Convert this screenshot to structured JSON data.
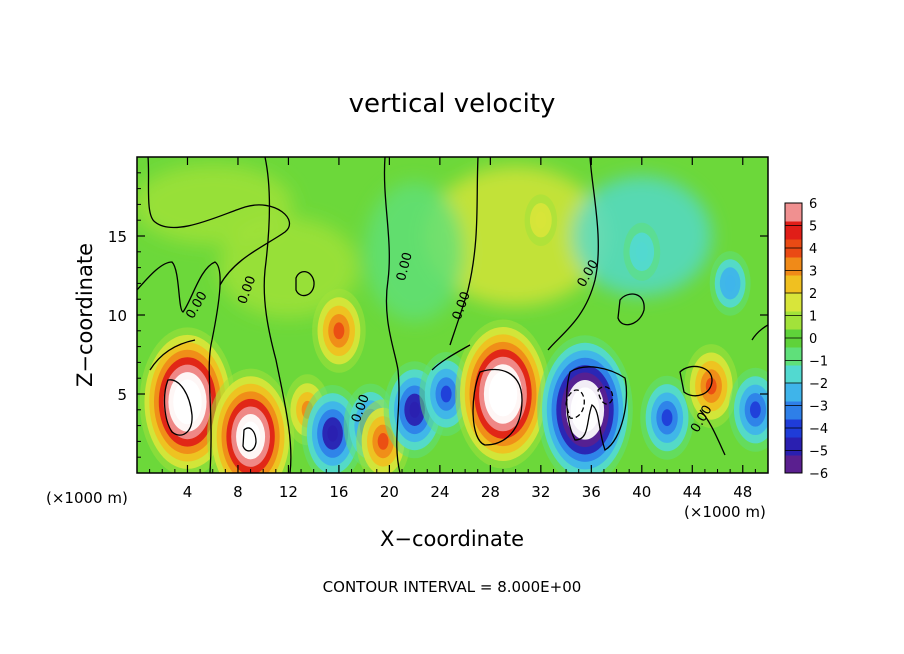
{
  "chart_data": {
    "type": "heatmap",
    "title": "vertical velocity",
    "xlabel": "X−coordinate",
    "ylabel": "Z−coordinate",
    "x_unit_label_left": "(×1000 m)",
    "x_unit_label_right": "(×1000 m)",
    "xlim": [
      0,
      50
    ],
    "ylim": [
      0,
      20
    ],
    "x_ticks": [
      4,
      8,
      12,
      16,
      20,
      24,
      28,
      32,
      36,
      40,
      44,
      48
    ],
    "y_ticks": [
      5,
      10,
      15
    ],
    "footer": "CONTOUR INTERVAL = 8.000E+00",
    "contour_label": "0.00",
    "colorbar": {
      "range": [
        -6,
        6
      ],
      "tick_labels": [
        "6",
        "5",
        "4",
        "3",
        "2",
        "1",
        "0",
        "−1",
        "−2",
        "−3",
        "−4",
        "−5",
        "−6"
      ],
      "tick_values": [
        6,
        5,
        4,
        3,
        2,
        1,
        0,
        -1,
        -2,
        -3,
        -4,
        -5,
        -6
      ],
      "colors": [
        "#5a1f8f",
        "#2a1fb0",
        "#1f3cd8",
        "#2e7fe8",
        "#3fb4ea",
        "#52d9d0",
        "#5fe07a",
        "#5fd23a",
        "#a2e23a",
        "#d8e53a",
        "#f0c020",
        "#f08a18",
        "#ea4a14",
        "#e01e18",
        "#f09090"
      ]
    },
    "background_value": 0.3,
    "features": [
      {
        "x": 4,
        "z": 4.5,
        "w": 4.5,
        "peak": 9,
        "kind": "updraft core"
      },
      {
        "x": 9,
        "z": 2.3,
        "w": 3.5,
        "peak": 8,
        "kind": "updraft core"
      },
      {
        "x": 13.5,
        "z": 4,
        "w": 2.0,
        "peak": 3
      },
      {
        "x": 15.5,
        "z": 2.5,
        "w": -5,
        "peak": -5
      },
      {
        "x": 16,
        "z": 9,
        "w": 4,
        "peak": 4
      },
      {
        "x": 18.5,
        "z": 3,
        "w": -4,
        "peak": -4
      },
      {
        "x": 19.5,
        "z": 2,
        "w": 4,
        "peak": 4
      },
      {
        "x": 22,
        "z": 4,
        "w": -5,
        "peak": -5
      },
      {
        "x": 24.5,
        "z": 5,
        "w": -4,
        "peak": -4
      },
      {
        "x": 29,
        "z": 5,
        "w": 9,
        "peak": 9,
        "kind": "updraft core"
      },
      {
        "x": 35.5,
        "z": 4,
        "w": -9,
        "peak": -9,
        "kind": "downdraft core"
      },
      {
        "x": 42,
        "z": 3.5,
        "w": -4,
        "peak": -4
      },
      {
        "x": 45.5,
        "z": 5.5,
        "w": 4,
        "peak": 4
      },
      {
        "x": 47,
        "z": 12,
        "w": -2.5,
        "peak": -2.5
      },
      {
        "x": 49,
        "z": 4,
        "w": -4,
        "peak": -4
      },
      {
        "x": 32,
        "z": 16,
        "w": 1.5,
        "peak": 1.5
      },
      {
        "x": 40,
        "z": 14,
        "w": -2,
        "peak": -2
      }
    ]
  }
}
